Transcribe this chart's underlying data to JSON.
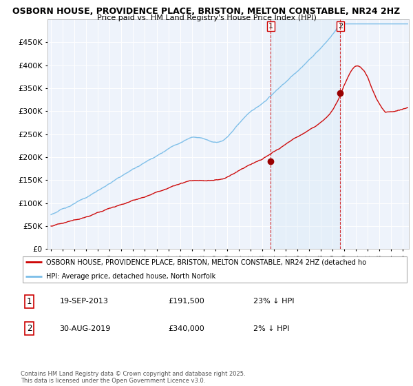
{
  "title1": "OSBORN HOUSE, PROVIDENCE PLACE, BRISTON, MELTON CONSTABLE, NR24 2HZ",
  "title2": "Price paid vs. HM Land Registry's House Price Index (HPI)",
  "legend_line1": "OSBORN HOUSE, PROVIDENCE PLACE, BRISTON, MELTON CONSTABLE, NR24 2HZ (detached ho",
  "legend_line2": "HPI: Average price, detached house, North Norfolk",
  "annotation1_date": "19-SEP-2013",
  "annotation1_price": "£191,500",
  "annotation1_hpi": "23% ↓ HPI",
  "annotation1_year": 2013.72,
  "annotation1_value": 191500,
  "annotation2_date": "30-AUG-2019",
  "annotation2_price": "£340,000",
  "annotation2_hpi": "2% ↓ HPI",
  "annotation2_year": 2019.66,
  "annotation2_value": 340000,
  "footer": "Contains HM Land Registry data © Crown copyright and database right 2025.\nThis data is licensed under the Open Government Licence v3.0.",
  "hpi_color": "#7abde8",
  "price_color": "#cc0000",
  "fill_color": "#d6e8f7",
  "background_color": "#eef3fb",
  "ylim": [
    0,
    500000
  ],
  "xlim_start": 1994.7,
  "xlim_end": 2025.5
}
